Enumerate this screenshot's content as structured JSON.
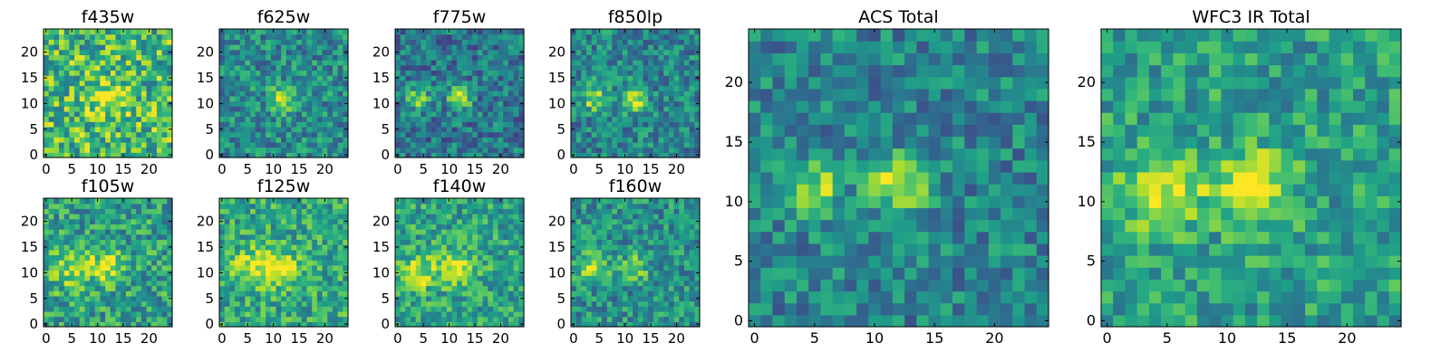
{
  "figure": {
    "colormap": "viridis",
    "colormap_stops": [
      "#440154",
      "#482878",
      "#3e4a89",
      "#31688e",
      "#26828e",
      "#1f9e89",
      "#35b779",
      "#6ece58",
      "#b5de2b",
      "#fde725"
    ]
  },
  "chart_data": [
    {
      "type": "heatmap",
      "title": "f435w",
      "grid_size": 25,
      "xlim": [
        0,
        24
      ],
      "ylim": [
        0,
        24
      ],
      "xticks": [
        0,
        5,
        10,
        15,
        20
      ],
      "yticks": [
        0,
        5,
        10,
        15,
        20
      ],
      "xtick_labels": [
        "0",
        "5",
        "10",
        "15",
        "20"
      ],
      "ytick_labels": [
        "0",
        "5",
        "10",
        "15",
        "20"
      ],
      "sources": [
        {
          "x": 12,
          "y": 11,
          "peak": 0.3,
          "sigma": 2.5
        }
      ],
      "base_level": 0.68,
      "noise_amplitude": 0.3,
      "noise_seed": 11
    },
    {
      "type": "heatmap",
      "title": "f625w",
      "grid_size": 25,
      "xlim": [
        0,
        24
      ],
      "ylim": [
        0,
        24
      ],
      "xticks": [
        0,
        5,
        10,
        15,
        20
      ],
      "yticks": [
        0,
        5,
        10,
        15,
        20
      ],
      "xtick_labels": [
        "0",
        "5",
        "10",
        "15",
        "20"
      ],
      "ytick_labels": [
        "0",
        "5",
        "10",
        "15",
        "20"
      ],
      "sources": [
        {
          "x": 12,
          "y": 11,
          "peak": 0.5,
          "sigma": 1.6
        }
      ],
      "base_level": 0.48,
      "noise_amplitude": 0.22,
      "noise_seed": 23
    },
    {
      "type": "heatmap",
      "title": "f775w",
      "grid_size": 25,
      "xlim": [
        0,
        24
      ],
      "ylim": [
        0,
        24
      ],
      "xticks": [
        0,
        5,
        10,
        15,
        20
      ],
      "yticks": [
        0,
        5,
        10,
        15,
        20
      ],
      "xtick_labels": [
        "0",
        "5",
        "10",
        "15",
        "20"
      ],
      "ytick_labels": [
        "0",
        "5",
        "10",
        "15",
        "20"
      ],
      "sources": [
        {
          "x": 4,
          "y": 11,
          "peak": 0.5,
          "sigma": 1.5
        },
        {
          "x": 12,
          "y": 11,
          "peak": 0.58,
          "sigma": 1.5
        }
      ],
      "base_level": 0.4,
      "noise_amplitude": 0.22,
      "noise_seed": 37
    },
    {
      "type": "heatmap",
      "title": "f850lp",
      "grid_size": 25,
      "xlim": [
        0,
        24
      ],
      "ylim": [
        0,
        24
      ],
      "xticks": [
        0,
        5,
        10,
        15,
        20
      ],
      "yticks": [
        0,
        5,
        10,
        15,
        20
      ],
      "xtick_labels": [
        "0",
        "5",
        "10",
        "15",
        "20"
      ],
      "ytick_labels": [
        "0",
        "5",
        "10",
        "15",
        "20"
      ],
      "sources": [
        {
          "x": 4,
          "y": 11,
          "peak": 0.45,
          "sigma": 1.7
        },
        {
          "x": 12,
          "y": 11,
          "peak": 0.5,
          "sigma": 1.7
        }
      ],
      "base_level": 0.45,
      "noise_amplitude": 0.22,
      "noise_seed": 41
    },
    {
      "type": "heatmap",
      "title": "f105w",
      "grid_size": 25,
      "xlim": [
        0,
        24
      ],
      "ylim": [
        0,
        24
      ],
      "xticks": [
        0,
        5,
        10,
        15,
        20
      ],
      "yticks": [
        0,
        5,
        10,
        15,
        20
      ],
      "xtick_labels": [
        "0",
        "5",
        "10",
        "15",
        "20"
      ],
      "ytick_labels": [
        "0",
        "5",
        "10",
        "15",
        "20"
      ],
      "sources": [
        {
          "x": 5,
          "y": 11,
          "peak": 0.3,
          "sigma": 3
        },
        {
          "x": 12,
          "y": 11,
          "peak": 0.35,
          "sigma": 2.2
        }
      ],
      "base_level": 0.56,
      "noise_amplitude": 0.24,
      "noise_seed": 53
    },
    {
      "type": "heatmap",
      "title": "f125w",
      "grid_size": 25,
      "xlim": [
        0,
        24
      ],
      "ylim": [
        0,
        24
      ],
      "xticks": [
        0,
        5,
        10,
        15,
        20
      ],
      "yticks": [
        0,
        5,
        10,
        15,
        20
      ],
      "xtick_labels": [
        "0",
        "5",
        "10",
        "15",
        "20"
      ],
      "ytick_labels": [
        "0",
        "5",
        "10",
        "15",
        "20"
      ],
      "sources": [
        {
          "x": 6,
          "y": 11,
          "peak": 0.32,
          "sigma": 2.6
        },
        {
          "x": 12,
          "y": 11,
          "peak": 0.32,
          "sigma": 2.4
        }
      ],
      "base_level": 0.6,
      "noise_amplitude": 0.22,
      "noise_seed": 67
    },
    {
      "type": "heatmap",
      "title": "f140w",
      "grid_size": 25,
      "xlim": [
        0,
        24
      ],
      "ylim": [
        0,
        24
      ],
      "xticks": [
        0,
        5,
        10,
        15,
        20
      ],
      "yticks": [
        0,
        5,
        10,
        15,
        20
      ],
      "xtick_labels": [
        "0",
        "5",
        "10",
        "15",
        "20"
      ],
      "ytick_labels": [
        "0",
        "5",
        "10",
        "15",
        "20"
      ],
      "sources": [
        {
          "x": 4,
          "y": 10,
          "peak": 0.32,
          "sigma": 2.5
        },
        {
          "x": 12,
          "y": 11,
          "peak": 0.3,
          "sigma": 2.4
        }
      ],
      "base_level": 0.58,
      "noise_amplitude": 0.22,
      "noise_seed": 71
    },
    {
      "type": "heatmap",
      "title": "f160w",
      "grid_size": 25,
      "xlim": [
        0,
        24
      ],
      "ylim": [
        0,
        24
      ],
      "xticks": [
        0,
        5,
        10,
        15,
        20
      ],
      "yticks": [
        0,
        5,
        10,
        15,
        20
      ],
      "xtick_labels": [
        "0",
        "5",
        "10",
        "15",
        "20"
      ],
      "ytick_labels": [
        "0",
        "5",
        "10",
        "15",
        "20"
      ],
      "sources": [
        {
          "x": 4,
          "y": 11,
          "peak": 0.4,
          "sigma": 2
        },
        {
          "x": 12,
          "y": 11,
          "peak": 0.32,
          "sigma": 1.8
        }
      ],
      "base_level": 0.5,
      "noise_amplitude": 0.22,
      "noise_seed": 83
    },
    {
      "type": "heatmap",
      "title": "ACS Total",
      "grid_size": 25,
      "xlim": [
        0,
        24
      ],
      "ylim": [
        0,
        24
      ],
      "xticks": [
        0,
        5,
        10,
        15,
        20
      ],
      "yticks": [
        0,
        5,
        10,
        15,
        20
      ],
      "xtick_labels": [
        "0",
        "5",
        "10",
        "15",
        "20"
      ],
      "ytick_labels": [
        "0",
        "5",
        "10",
        "15",
        "20"
      ],
      "sources": [
        {
          "x": 5,
          "y": 11,
          "peak": 0.42,
          "sigma": 1.6
        },
        {
          "x": 12,
          "y": 11.5,
          "peak": 0.52,
          "sigma": 1.6
        }
      ],
      "base_level": 0.45,
      "noise_amplitude": 0.2,
      "noise_seed": 97
    },
    {
      "type": "heatmap",
      "title": "WFC3 IR Total",
      "grid_size": 25,
      "xlim": [
        0,
        24
      ],
      "ylim": [
        0,
        24
      ],
      "xticks": [
        0,
        5,
        10,
        15,
        20
      ],
      "yticks": [
        0,
        5,
        10,
        15,
        20
      ],
      "xtick_labels": [
        "0",
        "5",
        "10",
        "15",
        "20"
      ],
      "ytick_labels": [
        "0",
        "5",
        "10",
        "15",
        "20"
      ],
      "sources": [
        {
          "x": 4.5,
          "y": 11,
          "peak": 0.4,
          "sigma": 2.4
        },
        {
          "x": 12,
          "y": 11.5,
          "peak": 0.4,
          "sigma": 2.2
        }
      ],
      "base_level": 0.56,
      "noise_amplitude": 0.2,
      "noise_seed": 101
    }
  ]
}
